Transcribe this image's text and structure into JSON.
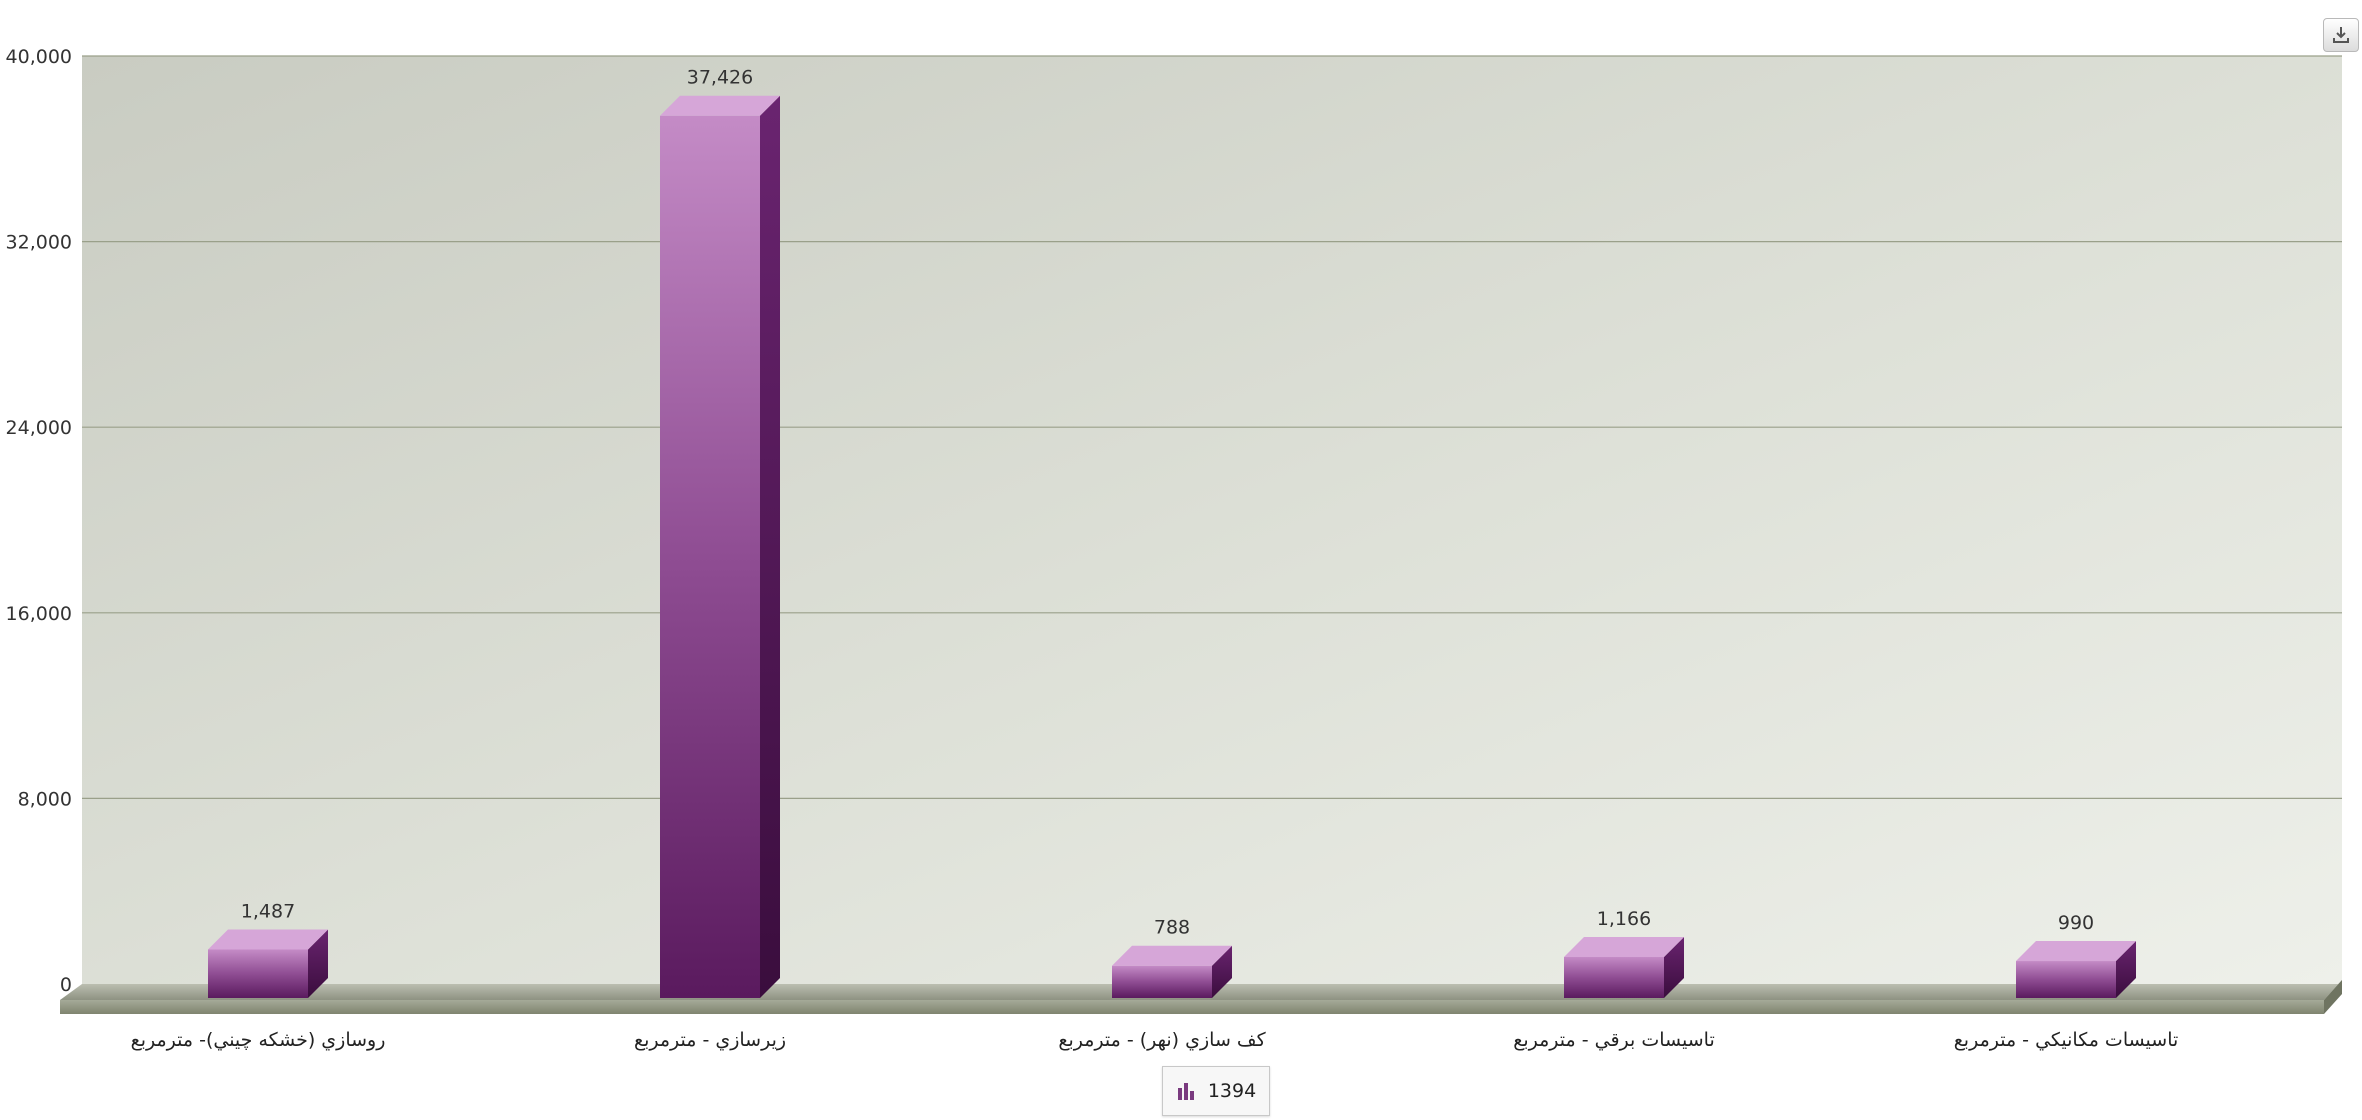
{
  "chart_data": {
    "type": "bar",
    "categories": [
      "روسازي (خشكه چيني)- مترمربع",
      "زيرسازي - مترمربع",
      "كف سازي (نهر) - مترمربع",
      "تاسيسات برقي - مترمربع",
      "تاسيسات مكانيكي - مترمربع"
    ],
    "series": [
      {
        "name": "1394",
        "values": [
          1487,
          37426,
          788,
          1166,
          990
        ]
      }
    ],
    "value_labels": [
      "1,487",
      "37,426",
      "788",
      "1,166",
      "990"
    ],
    "yticks": [
      0,
      8000,
      16000,
      24000,
      32000,
      40000
    ],
    "ytick_labels": [
      "0",
      "8,000",
      "16,000",
      "24,000",
      "32,000",
      "40,000"
    ],
    "ylim": [
      0,
      40000
    ],
    "grid": true,
    "legend_position": "bottom-center",
    "colors": {
      "bar_front": "#7a3a7f",
      "bar_light": "#c48bc6",
      "bar_dark": "#4d1450",
      "bar_top": "#d6a6d8"
    }
  },
  "legend": {
    "label": "1394",
    "icon": "bar-chart-icon"
  },
  "toolbar": {
    "export_icon": "download-icon"
  }
}
